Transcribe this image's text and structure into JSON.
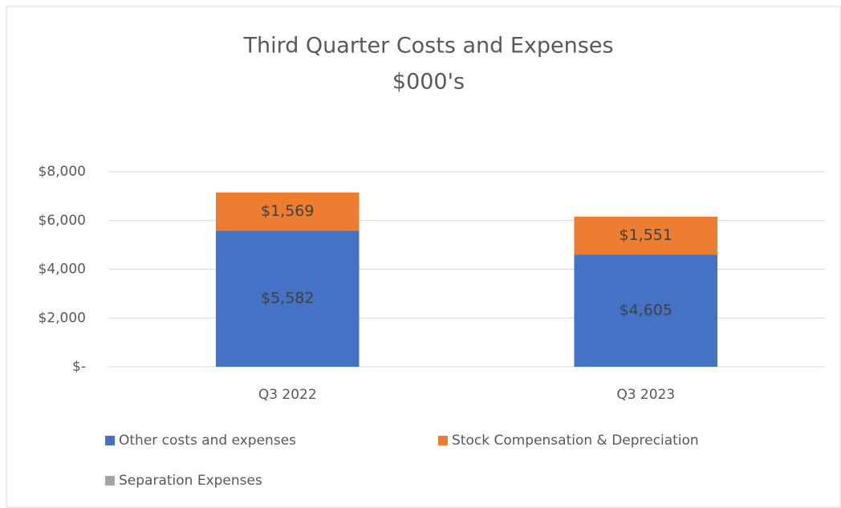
{
  "chart_data": {
    "type": "stacked_bar",
    "title": "Third Quarter Costs and Expenses",
    "subtitle": "$000's",
    "categories": [
      "Q3 2022",
      "Q3 2023"
    ],
    "series": [
      {
        "name": "Other costs and expenses",
        "color": "#4472c4",
        "values": [
          5582,
          4605
        ],
        "value_labels": [
          "$5,582",
          "$4,605"
        ]
      },
      {
        "name": "Stock Compensation & Depreciation",
        "color": "#ed7d31",
        "values": [
          1569,
          1551
        ],
        "value_labels": [
          "$1,569",
          "$1,551"
        ]
      },
      {
        "name": "Separation Expenses",
        "color": "#a5a5a5",
        "values": [
          0,
          0
        ]
      }
    ],
    "ylim": [
      0,
      8000
    ],
    "yticks": [
      {
        "value": 0,
        "label": "$-"
      },
      {
        "value": 2000,
        "label": "$2,000"
      },
      {
        "value": 4000,
        "label": "$4,000"
      },
      {
        "value": 6000,
        "label": "$6,000"
      },
      {
        "value": 8000,
        "label": "$8,000"
      }
    ],
    "grid": true,
    "legend": "bottom"
  }
}
